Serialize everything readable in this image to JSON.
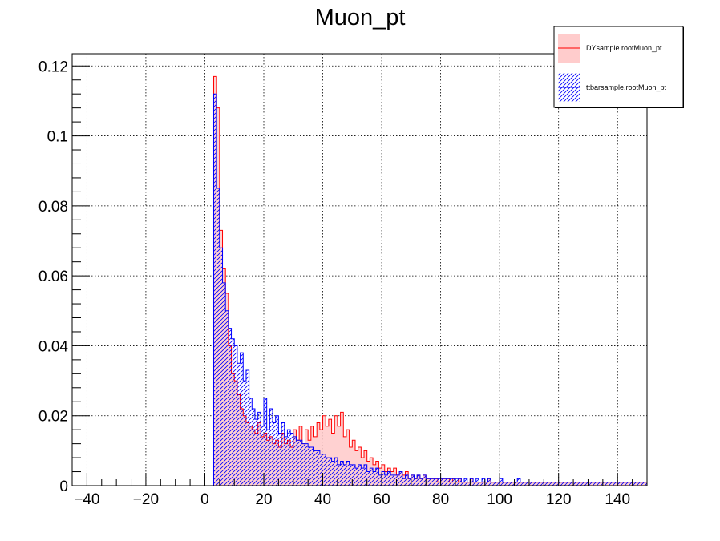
{
  "chart_data": {
    "type": "bar",
    "title": "Muon_pt",
    "xlabel": "",
    "ylabel": "",
    "xlim": [
      -45,
      150
    ],
    "ylim": [
      0,
      0.1235
    ],
    "x_ticks": [
      -40,
      -20,
      0,
      20,
      40,
      60,
      80,
      100,
      120,
      140
    ],
    "x_tick_labels": [
      "−40",
      "−20",
      "0",
      "20",
      "40",
      "60",
      "80",
      "100",
      "120",
      "140"
    ],
    "y_ticks": [
      0,
      0.02,
      0.04,
      0.06,
      0.08,
      0.1,
      0.12
    ],
    "y_tick_labels": [
      "0",
      "0.02",
      "0.04",
      "0.06",
      "0.08",
      "0.1",
      "0.12"
    ],
    "grid": true,
    "legend_position": "top-right",
    "bin_width": 1,
    "x_start": 3,
    "series": [
      {
        "name": "DYsample.rootMuon_pt",
        "color": "#ff0000",
        "fill": "#ffcccc",
        "fill_style": "solid",
        "values": [
          0.117,
          0.108,
          0.073,
          0.062,
          0.055,
          0.04,
          0.032,
          0.03,
          0.026,
          0.022,
          0.02,
          0.018,
          0.017,
          0.016,
          0.015,
          0.018,
          0.014,
          0.015,
          0.013,
          0.014,
          0.012,
          0.013,
          0.011,
          0.015,
          0.012,
          0.013,
          0.011,
          0.016,
          0.013,
          0.017,
          0.012,
          0.016,
          0.013,
          0.017,
          0.014,
          0.018,
          0.016,
          0.02,
          0.017,
          0.019,
          0.015,
          0.02,
          0.017,
          0.021,
          0.014,
          0.016,
          0.011,
          0.013,
          0.01,
          0.011,
          0.008,
          0.01,
          0.007,
          0.008,
          0.006,
          0.007,
          0.005,
          0.006,
          0.004,
          0.005,
          0.004,
          0.005,
          0.003,
          0.004,
          0.003,
          0.004,
          0.002,
          0.003,
          0.002,
          0.003,
          0.002,
          0.003,
          0.002,
          0.002,
          0.002,
          0.002,
          0.001,
          0.002,
          0.002,
          0.002,
          0.001,
          0.002,
          0.001,
          0.002,
          0.001,
          0.001,
          0.001,
          0.002,
          0.001,
          0.001,
          0.001,
          0.001,
          0.001,
          0.002,
          0.001,
          0.001,
          0.001,
          0.001,
          0.001,
          0.001,
          0.001,
          0.001,
          0.001,
          0.001,
          0.001,
          0.001,
          0.001,
          0.001,
          0.001,
          0.001,
          0.001,
          0.001,
          0.001,
          0.001,
          0.001,
          0.001,
          0.001,
          0.001,
          0.001,
          0.001,
          0.001,
          0.001,
          0.001,
          0.001,
          0.001,
          0.001,
          0.001,
          0.001,
          0.001,
          0.001,
          0.001,
          0.001,
          0.001,
          0.001,
          0.001,
          0.001,
          0.001,
          0.001,
          0.001,
          0.001,
          0.001,
          0.001,
          0.001,
          0.001,
          0.001,
          0.001,
          0.001
        ]
      },
      {
        "name": "ttbarsample.rootMuon_pt",
        "color": "#0000ff",
        "fill": "#0000ff",
        "fill_style": "hatched",
        "values": [
          0.112,
          0.085,
          0.068,
          0.058,
          0.05,
          0.045,
          0.042,
          0.04,
          0.035,
          0.038,
          0.03,
          0.033,
          0.025,
          0.022,
          0.019,
          0.021,
          0.017,
          0.025,
          0.016,
          0.022,
          0.018,
          0.02,
          0.015,
          0.018,
          0.014,
          0.016,
          0.015,
          0.014,
          0.013,
          0.013,
          0.012,
          0.012,
          0.011,
          0.011,
          0.01,
          0.01,
          0.009,
          0.009,
          0.008,
          0.008,
          0.007,
          0.008,
          0.006,
          0.007,
          0.006,
          0.007,
          0.006,
          0.006,
          0.005,
          0.006,
          0.005,
          0.006,
          0.004,
          0.005,
          0.004,
          0.005,
          0.003,
          0.004,
          0.003,
          0.004,
          0.003,
          0.003,
          0.003,
          0.004,
          0.002,
          0.003,
          0.002,
          0.003,
          0.002,
          0.003,
          0.002,
          0.003,
          0.002,
          0.002,
          0.002,
          0.002,
          0.002,
          0.002,
          0.002,
          0.002,
          0.002,
          0.002,
          0.002,
          0.002,
          0.001,
          0.002,
          0.001,
          0.002,
          0.001,
          0.002,
          0.001,
          0.002,
          0.001,
          0.002,
          0.001,
          0.001,
          0.001,
          0.002,
          0.001,
          0.001,
          0.001,
          0.001,
          0.001,
          0.002,
          0.001,
          0.001,
          0.001,
          0.001,
          0.001,
          0.001,
          0.001,
          0.001,
          0.001,
          0.001,
          0.001,
          0.001,
          0.001,
          0.001,
          0.001,
          0.001,
          0.001,
          0.001,
          0.001,
          0.001,
          0.001,
          0.001,
          0.001,
          0.001,
          0.001,
          0.001,
          0.001,
          0.001,
          0.001,
          0.001,
          0.001,
          0.001,
          0.001,
          0.001,
          0.001,
          0.001,
          0.001,
          0.001,
          0.001,
          0.001,
          0.001,
          0.001,
          0.001
        ]
      }
    ]
  }
}
